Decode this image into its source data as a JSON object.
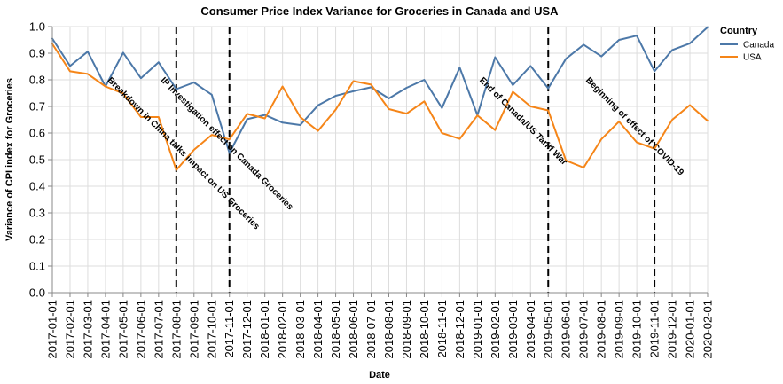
{
  "chart_data": {
    "type": "line",
    "title": "Consumer Price Index Variance for Groceries in Canada and USA",
    "xlabel": "Date",
    "ylabel": "Variance of CPI index for Groceries",
    "ylim": [
      0,
      1
    ],
    "yticks": [
      "0.0",
      "0.1",
      "0.2",
      "0.3",
      "0.4",
      "0.5",
      "0.6",
      "0.7",
      "0.8",
      "0.9",
      "1.0"
    ],
    "grid": true,
    "legend": {
      "title": "Country",
      "placement": "top-right"
    },
    "x": [
      "2017-01-01",
      "2017-02-01",
      "2017-03-01",
      "2017-04-01",
      "2017-05-01",
      "2017-06-01",
      "2017-07-01",
      "2017-08-01",
      "2017-09-01",
      "2017-10-01",
      "2017-11-01",
      "2017-12-01",
      "2018-01-01",
      "2018-02-01",
      "2018-03-01",
      "2018-04-01",
      "2018-05-01",
      "2018-06-01",
      "2018-07-01",
      "2018-08-01",
      "2018-09-01",
      "2018-10-01",
      "2018-11-01",
      "2018-12-01",
      "2019-01-01",
      "2019-02-01",
      "2019-03-01",
      "2019-04-01",
      "2019-05-01",
      "2019-06-01",
      "2019-07-01",
      "2019-08-01",
      "2019-09-01",
      "2019-10-01",
      "2019-11-01",
      "2019-12-01",
      "2020-01-01",
      "2020-02-01"
    ],
    "series": [
      {
        "name": "Canada",
        "color": "#4c78a8",
        "values": [
          0.955,
          0.852,
          0.906,
          0.775,
          0.902,
          0.806,
          0.866,
          0.765,
          0.79,
          0.744,
          0.525,
          0.652,
          0.668,
          0.639,
          0.63,
          0.704,
          0.74,
          0.757,
          0.772,
          0.73,
          0.77,
          0.8,
          0.694,
          0.846,
          0.667,
          0.885,
          0.78,
          0.852,
          0.768,
          0.879,
          0.932,
          0.888,
          0.95,
          0.966,
          0.832,
          0.912,
          0.937,
          0.998
        ]
      },
      {
        "name": "USA",
        "color": "#f58518",
        "values": [
          0.935,
          0.832,
          0.822,
          0.775,
          0.749,
          0.66,
          0.66,
          0.461,
          0.537,
          0.593,
          0.576,
          0.672,
          0.655,
          0.775,
          0.66,
          0.608,
          0.688,
          0.795,
          0.782,
          0.69,
          0.673,
          0.719,
          0.6,
          0.578,
          0.666,
          0.611,
          0.755,
          0.7,
          0.685,
          0.497,
          0.47,
          0.577,
          0.643,
          0.565,
          0.541,
          0.65,
          0.705,
          0.646
        ]
      }
    ],
    "annotations": [
      {
        "date": "2017-08-01",
        "label": "Breakdown in China talks impact on US Groceries"
      },
      {
        "date": "2017-11-01",
        "label": "IP Investigation effect on Canada Groceries"
      },
      {
        "date": "2019-05-01",
        "label": "End of Canada/US Tariff War"
      },
      {
        "date": "2019-11-01",
        "label": "Beginning of effect of COVID-19"
      }
    ]
  }
}
